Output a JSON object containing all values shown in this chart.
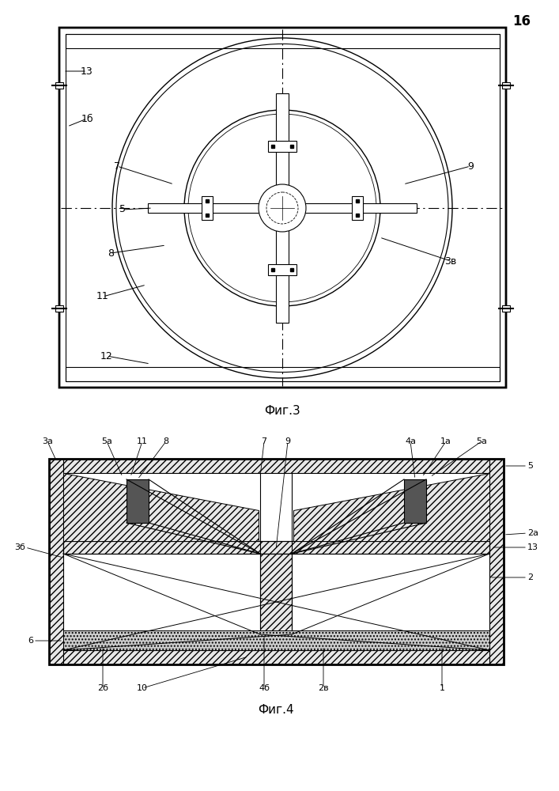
{
  "page_number": "16",
  "fig3_caption": "Фиг.3",
  "fig4_caption": "Фиг.4",
  "line_color": "#000000",
  "bg_color": "#ffffff"
}
